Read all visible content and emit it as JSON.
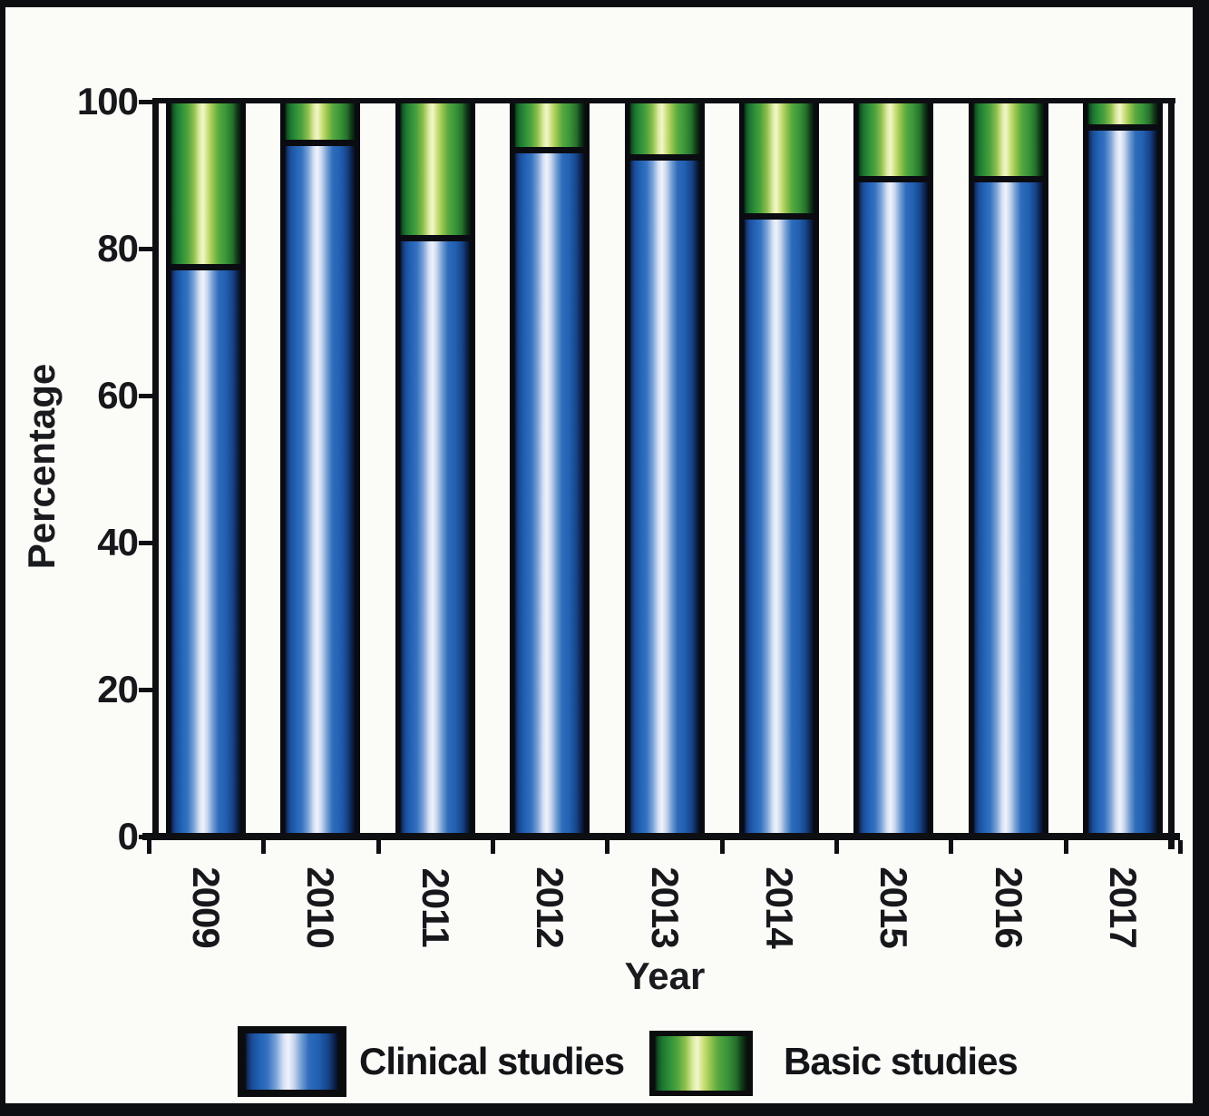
{
  "figure": {
    "background": "#fbfbf8",
    "frame_color": "#0d0e11"
  },
  "chart_data": {
    "type": "bar",
    "stacked": true,
    "title": "",
    "xlabel": "Year",
    "ylabel": "Percentage",
    "categories": [
      "2009",
      "2010",
      "2011",
      "2012",
      "2013",
      "2014",
      "2015",
      "2016",
      "2017"
    ],
    "series": [
      {
        "name": "Clinical studies",
        "color": "#1f5fb0",
        "values": [
          77,
          94,
          81,
          93,
          92,
          84,
          89,
          89,
          96
        ]
      },
      {
        "name": "Basic studies",
        "color": "#5fae3c",
        "values": [
          23,
          6,
          19,
          7,
          8,
          16,
          11,
          11,
          4
        ]
      }
    ],
    "ylim": [
      0,
      100
    ],
    "yticks": [
      0,
      20,
      40,
      60,
      80,
      100
    ],
    "grid": false,
    "legend_position": "bottom",
    "bar_style": "3d-cylinder-gradient",
    "x_tick_label_rotation_deg": 90
  }
}
